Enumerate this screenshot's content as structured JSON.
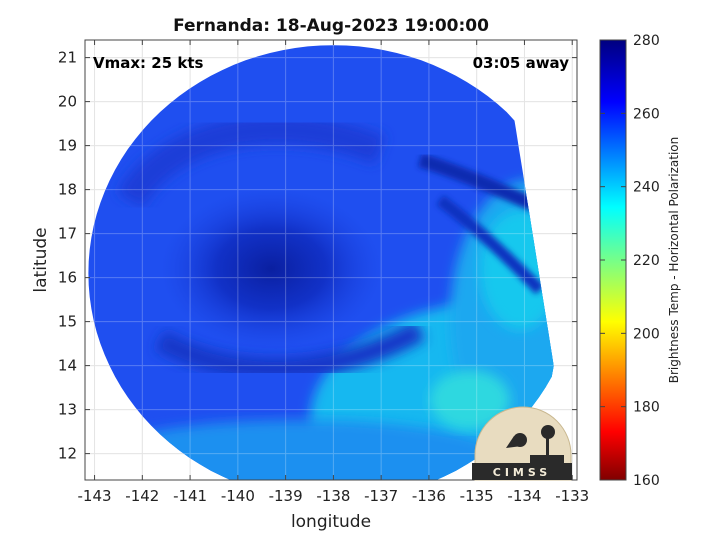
{
  "chart_data": {
    "type": "heatmap",
    "title": "Fernanda: 18-Aug-2023 19:00:00",
    "xlabel": "longitude",
    "ylabel": "latitude",
    "xlim": [
      -143.2,
      -132.9
    ],
    "ylim": [
      11.4,
      21.4
    ],
    "x_ticks": [
      "-143",
      "-142",
      "-141",
      "-140",
      "-139",
      "-138",
      "-137",
      "-136",
      "-135",
      "-134",
      "-133"
    ],
    "x_tick_values": [
      -143,
      -142,
      -141,
      -140,
      -139,
      -138,
      -137,
      -136,
      -135,
      -134,
      -133
    ],
    "y_ticks": [
      "12",
      "13",
      "14",
      "15",
      "16",
      "17",
      "18",
      "19",
      "20",
      "21"
    ],
    "y_tick_values": [
      12,
      13,
      14,
      15,
      16,
      17,
      18,
      19,
      20,
      21
    ],
    "grid": true,
    "annotations": {
      "vmax": "Vmax: 25 kts",
      "time_offset": "03:05 away"
    },
    "storm_center": {
      "lon": -139.3,
      "lat": 16.2
    },
    "colorbar": {
      "label": "Brightness Temp - Horizontal Polarization",
      "range": [
        160,
        280
      ],
      "ticks": [
        "160",
        "180",
        "200",
        "220",
        "240",
        "260",
        "280"
      ],
      "tick_values": [
        160,
        180,
        200,
        220,
        240,
        260,
        280
      ],
      "colormap": "jet-reversed"
    }
  },
  "logo": {
    "text": "CIMSS"
  }
}
